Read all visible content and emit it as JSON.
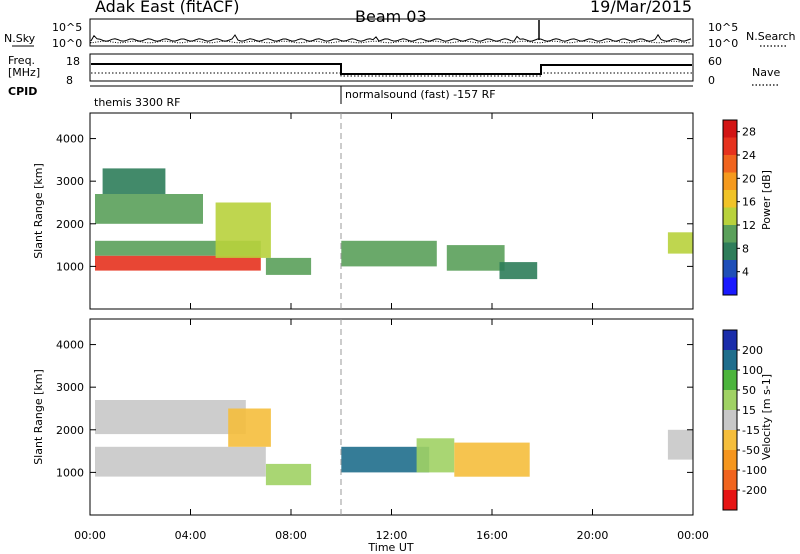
{
  "header": {
    "radar": "Adak East (fitACF)",
    "beam": "Beam 03",
    "date": "19/Mar/2015"
  },
  "noise_panel": {
    "left_label": "N.Sky",
    "right_label": "N.Search",
    "left_ticks": [
      "10^5",
      "10^0"
    ],
    "right_ticks": [
      "10^5",
      "10^0"
    ]
  },
  "freq_panel": {
    "left_label_1": "Freq.",
    "left_label_2": "[MHz]",
    "right_label": "Nave",
    "left_ticks": [
      "18",
      "8"
    ],
    "right_ticks": [
      "60",
      "0"
    ]
  },
  "cpid_panel": {
    "label": "CPID",
    "segments": [
      {
        "start_hour": 0,
        "end_hour": 10,
        "text": "themis 3300 RF"
      },
      {
        "start_hour": 10,
        "end_hour": 24,
        "text": "normalsound (fast) -157 RF"
      }
    ]
  },
  "chart_data": [
    {
      "type": "heatmap",
      "title": "",
      "xlabel": "Time UT",
      "ylabel": "Slant Range [km]",
      "xlim": [
        0,
        24
      ],
      "ylim": [
        0,
        4600
      ],
      "x_ticks": [
        "00:00",
        "04:00",
        "08:00",
        "12:00",
        "16:00",
        "20:00",
        "00:00"
      ],
      "y_ticks": [
        "1000",
        "2000",
        "3000",
        "4000"
      ],
      "colorbar": {
        "label": "Power [dB]",
        "ticks": [
          "4",
          "8",
          "12",
          "16",
          "20",
          "24",
          "28"
        ],
        "range": [
          0,
          30
        ],
        "colors": [
          "#1a1aff",
          "#1f4fb8",
          "#2e7d5a",
          "#5aa05a",
          "#b8d23c",
          "#f0c328",
          "#f59a1e",
          "#f0641e",
          "#e6321e",
          "#d21414"
        ]
      },
      "regions": [
        {
          "t0": 0.2,
          "t1": 6.8,
          "r0": 900,
          "r1": 1250,
          "value": 24
        },
        {
          "t0": 0.2,
          "t1": 6.8,
          "r0": 1250,
          "r1": 1600,
          "value": 10
        },
        {
          "t0": 0.2,
          "t1": 4.5,
          "r0": 2000,
          "r1": 2700,
          "value": 9
        },
        {
          "t0": 0.5,
          "t1": 3.0,
          "r0": 2700,
          "r1": 3300,
          "value": 6
        },
        {
          "t0": 5.0,
          "t1": 7.2,
          "r0": 1200,
          "r1": 2500,
          "value": 14
        },
        {
          "t0": 7.0,
          "t1": 8.8,
          "r0": 800,
          "r1": 1200,
          "value": 9
        },
        {
          "t0": 10.0,
          "t1": 13.8,
          "r0": 1000,
          "r1": 1600,
          "value": 9
        },
        {
          "t0": 14.2,
          "t1": 16.5,
          "r0": 900,
          "r1": 1500,
          "value": 10
        },
        {
          "t0": 16.3,
          "t1": 17.8,
          "r0": 700,
          "r1": 1100,
          "value": 7
        },
        {
          "t0": 23.0,
          "t1": 24.0,
          "r0": 1300,
          "r1": 1800,
          "value": 12
        }
      ]
    },
    {
      "type": "heatmap",
      "title": "",
      "xlabel": "Time UT",
      "ylabel": "Slant Range [km]",
      "xlim": [
        0,
        24
      ],
      "ylim": [
        0,
        4600
      ],
      "x_ticks": [
        "00:00",
        "04:00",
        "08:00",
        "12:00",
        "16:00",
        "20:00",
        "00:00"
      ],
      "y_ticks": [
        "1000",
        "2000",
        "3000",
        "4000"
      ],
      "colorbar": {
        "label": "Velocity [m s-1]",
        "ticks": [
          "200",
          "100",
          "50",
          "15",
          "-15",
          "-50",
          "-100",
          "-200"
        ],
        "range": [
          -250,
          250
        ],
        "colors": [
          "#e61414",
          "#f0641e",
          "#f5961e",
          "#f5be3c",
          "#c8c8c8",
          "#a0d264",
          "#4bb43c",
          "#1f6e8c",
          "#1a2daa"
        ]
      },
      "regions": [
        {
          "t0": 0.2,
          "t1": 7.0,
          "r0": 900,
          "r1": 1600,
          "value": 0
        },
        {
          "t0": 0.2,
          "t1": 6.2,
          "r0": 1900,
          "r1": 2700,
          "value": 0
        },
        {
          "t0": 5.5,
          "t1": 7.2,
          "r0": 1600,
          "r1": 2500,
          "value": -30
        },
        {
          "t0": 7.0,
          "t1": 8.8,
          "r0": 700,
          "r1": 1200,
          "value": 45
        },
        {
          "t0": 10.0,
          "t1": 13.5,
          "r0": 1000,
          "r1": 1600,
          "value": 170
        },
        {
          "t0": 13.0,
          "t1": 14.5,
          "r0": 1000,
          "r1": 1800,
          "value": 60
        },
        {
          "t0": 14.5,
          "t1": 17.5,
          "r0": 900,
          "r1": 1700,
          "value": -70
        },
        {
          "t0": 23.0,
          "t1": 24.0,
          "r0": 1300,
          "r1": 2000,
          "value": 0
        }
      ]
    }
  ]
}
